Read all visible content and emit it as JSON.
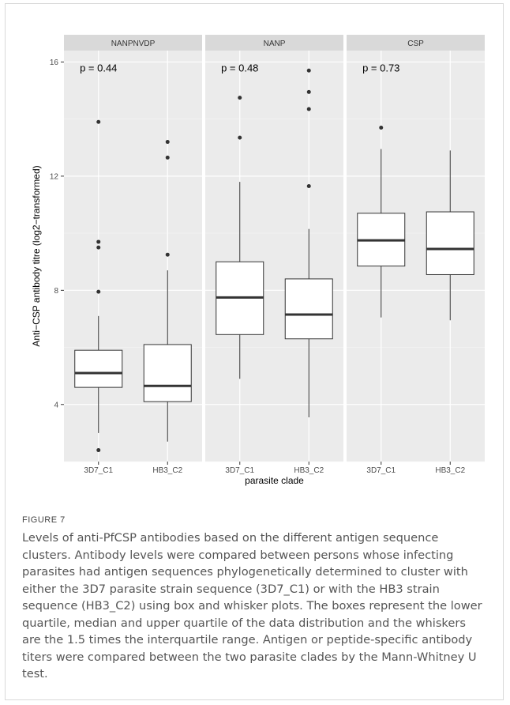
{
  "figure": {
    "label": "FIGURE 7",
    "caption": "Levels of anti-PfCSP antibodies based on the different antigen sequence clusters. Antibody levels were compared between persons whose infecting parasites had antigen sequences phylogenetically determined to cluster with either the 3D7 parasite strain sequence (3D7_C1) or with the HB3 strain sequence (HB3_C2) using box and whisker plots. The boxes represent the lower quartile, median and upper quartile of the data distribution and the whiskers are the 1.5 times the interquartile range. Antigen or peptide-specific antibody titers were compared between the two parasite clades by the Mann-Whitney U test."
  },
  "chart_data": {
    "type": "box",
    "xlabel": "parasite clade",
    "ylabel": "Anti−CSP antibody titre (log2−transformed)",
    "ylim": [
      2.0,
      16.4
    ],
    "yticks": [
      4,
      8,
      12,
      16
    ],
    "categories": [
      "3D7_C1",
      "HB3_C2"
    ],
    "grid": true,
    "facets": [
      {
        "name": "NANPNVDP",
        "pvalue": "p = 0.44",
        "boxes": [
          {
            "category": "3D7_C1",
            "whisker_low": 3.0,
            "q1": 4.6,
            "median": 5.1,
            "q3": 5.9,
            "whisker_high": 7.1,
            "outliers": [
              2.4,
              7.95,
              9.5,
              9.7,
              13.9
            ]
          },
          {
            "category": "HB3_C2",
            "whisker_low": 2.7,
            "q1": 4.1,
            "median": 4.65,
            "q3": 6.1,
            "whisker_high": 8.7,
            "outliers": [
              9.25,
              12.65,
              13.2
            ]
          }
        ]
      },
      {
        "name": "NANP",
        "pvalue": "p = 0.48",
        "boxes": [
          {
            "category": "3D7_C1",
            "whisker_low": 4.9,
            "q1": 6.45,
            "median": 7.75,
            "q3": 9.0,
            "whisker_high": 11.8,
            "outliers": [
              13.35,
              14.75
            ]
          },
          {
            "category": "HB3_C2",
            "whisker_low": 3.55,
            "q1": 6.3,
            "median": 7.15,
            "q3": 8.4,
            "whisker_high": 10.15,
            "outliers": [
              11.65,
              14.35,
              14.95,
              15.7
            ]
          }
        ]
      },
      {
        "name": "CSP",
        "pvalue": "p = 0.73",
        "boxes": [
          {
            "category": "3D7_C1",
            "whisker_low": 7.05,
            "q1": 8.85,
            "median": 9.75,
            "q3": 10.7,
            "whisker_high": 12.95,
            "outliers": [
              13.7
            ]
          },
          {
            "category": "HB3_C2",
            "whisker_low": 6.95,
            "q1": 8.55,
            "median": 9.45,
            "q3": 10.75,
            "whisker_high": 12.9,
            "outliers": []
          }
        ]
      }
    ]
  }
}
